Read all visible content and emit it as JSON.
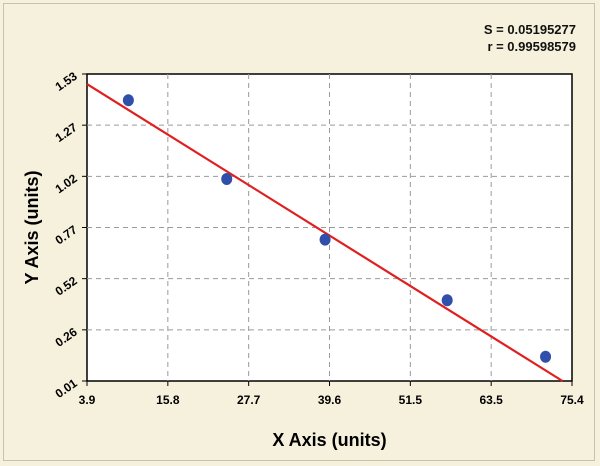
{
  "stats": {
    "s_text": "S = 0.05195277",
    "r_text": "r = 0.99598579"
  },
  "chart_data": {
    "type": "scatter",
    "xlabel": "X Axis (units)",
    "ylabel": "Y Axis (units)",
    "x_ticks": [
      "3.9",
      "15.8",
      "27.7",
      "39.6",
      "51.5",
      "63.5",
      "75.4"
    ],
    "y_ticks": [
      "0.01",
      "0.26",
      "0.52",
      "0.77",
      "1.02",
      "1.27",
      "1.53"
    ],
    "xlim": [
      3.9,
      75.4
    ],
    "ylim": [
      0.01,
      1.53
    ],
    "grid": true,
    "points": [
      {
        "x": 10.0,
        "y": 1.4
      },
      {
        "x": 24.5,
        "y": 1.01
      },
      {
        "x": 39.0,
        "y": 0.71
      },
      {
        "x": 57.0,
        "y": 0.41
      },
      {
        "x": 71.5,
        "y": 0.13
      }
    ],
    "fit_line": {
      "x1": 3.9,
      "y1": 1.48,
      "x2": 74.0,
      "y2": 0.01
    },
    "colors": {
      "points": "#2f4faa",
      "fit_line": "#e02020",
      "plot_bg": "#ffffff",
      "grid": "#9a9a9a",
      "page_bg": "#f6f1dc"
    }
  }
}
